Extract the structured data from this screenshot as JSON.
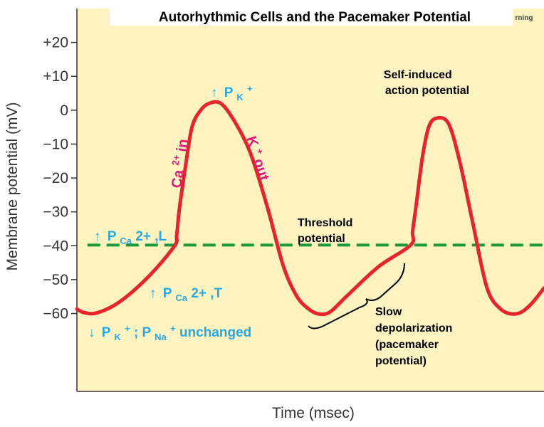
{
  "colors": {
    "background": "#fdf3c0",
    "curve": "#e8232a",
    "threshold": "#1a9b3a",
    "blue_text": "#29a8df",
    "pink_text": "#e0177f"
  },
  "title_cut_word": "rning",
  "chart_data": {
    "type": "line",
    "title": "Autorhythmic Cells and the Pacemaker Potential",
    "xlabel": "Time (msec)",
    "ylabel": "Membrane potential (mV)",
    "ylim": [
      -83,
      30
    ],
    "yticks": [
      20,
      10,
      0,
      -10,
      -20,
      -30,
      -40,
      -50,
      -60
    ],
    "ytick_labels": [
      "+20",
      "+10",
      "0",
      "−10",
      "−20",
      "−30",
      "−40",
      "−50",
      "−60"
    ],
    "grid": false,
    "x_ticks_shown": false,
    "series": [
      {
        "x": [
          0,
          1.2,
          3.1,
          6.4,
          10.8,
          14.8,
          15.2,
          15.6,
          16.5,
          17.5,
          18.8,
          20.1,
          21.9,
          23.9,
          26.4,
          29.0,
          31.4,
          33.4,
          35.1,
          36.7,
          38.5,
          41.0,
          45.9,
          50.8,
          51.1,
          51.7,
          52.6,
          53.6,
          54.9,
          56.6,
          58.3,
          60.3,
          62.4,
          64.5,
          66.9,
          68.9,
          71.1
        ],
        "y": [
          -58.7,
          -59.8,
          -59.8,
          -56.7,
          -49.3,
          -40.2,
          -36.8,
          -29.1,
          -17.0,
          -5.1,
          -0.1,
          2.0,
          2.0,
          -3.0,
          -12.6,
          -28.7,
          -45.9,
          -54.7,
          -58.4,
          -60.1,
          -59.6,
          -55.0,
          -46.2,
          -39.8,
          -35.7,
          -27.2,
          -13.8,
          -4.7,
          -2.3,
          -4.1,
          -15.4,
          -33.7,
          -52.3,
          -58.7,
          -60.1,
          -57.7,
          -52.5
        ]
      },
      {
        "name_note": "threshold",
        "x": [
          1.6,
          71.1
        ],
        "y": [
          -39.8,
          -39.8
        ]
      }
    ],
    "annotations": {
      "self_induced": [
        "Self-induced",
        "action potential"
      ],
      "threshold": [
        "Threshold",
        "potential"
      ],
      "slow_depol": [
        "Slow",
        "depolarization",
        "(pacemaker",
        "potential)"
      ],
      "pk_up": {
        "arrow": "↑",
        "p": "P",
        "sub": "K",
        "sup": "+"
      },
      "pca_l": {
        "arrow": "↑",
        "p": "P",
        "sub": "Ca",
        "sup": "2+",
        "suffix": ",L"
      },
      "pca_t": {
        "arrow": "↑",
        "p": "P",
        "sub": "Ca",
        "sup": "2+",
        "suffix": ",T"
      },
      "pk_down": {
        "arrow": "↓",
        "p": "P",
        "sub": "K",
        "sup": "+",
        "mid": "; P",
        "sub2": "Na",
        "sup2": "+",
        "suffix": " unchanged"
      },
      "ca_in": {
        "base": "Ca",
        "sup": "2+",
        "suffix": " in"
      },
      "k_out": {
        "base": "K",
        "sup": "+",
        "suffix": " out"
      }
    }
  }
}
